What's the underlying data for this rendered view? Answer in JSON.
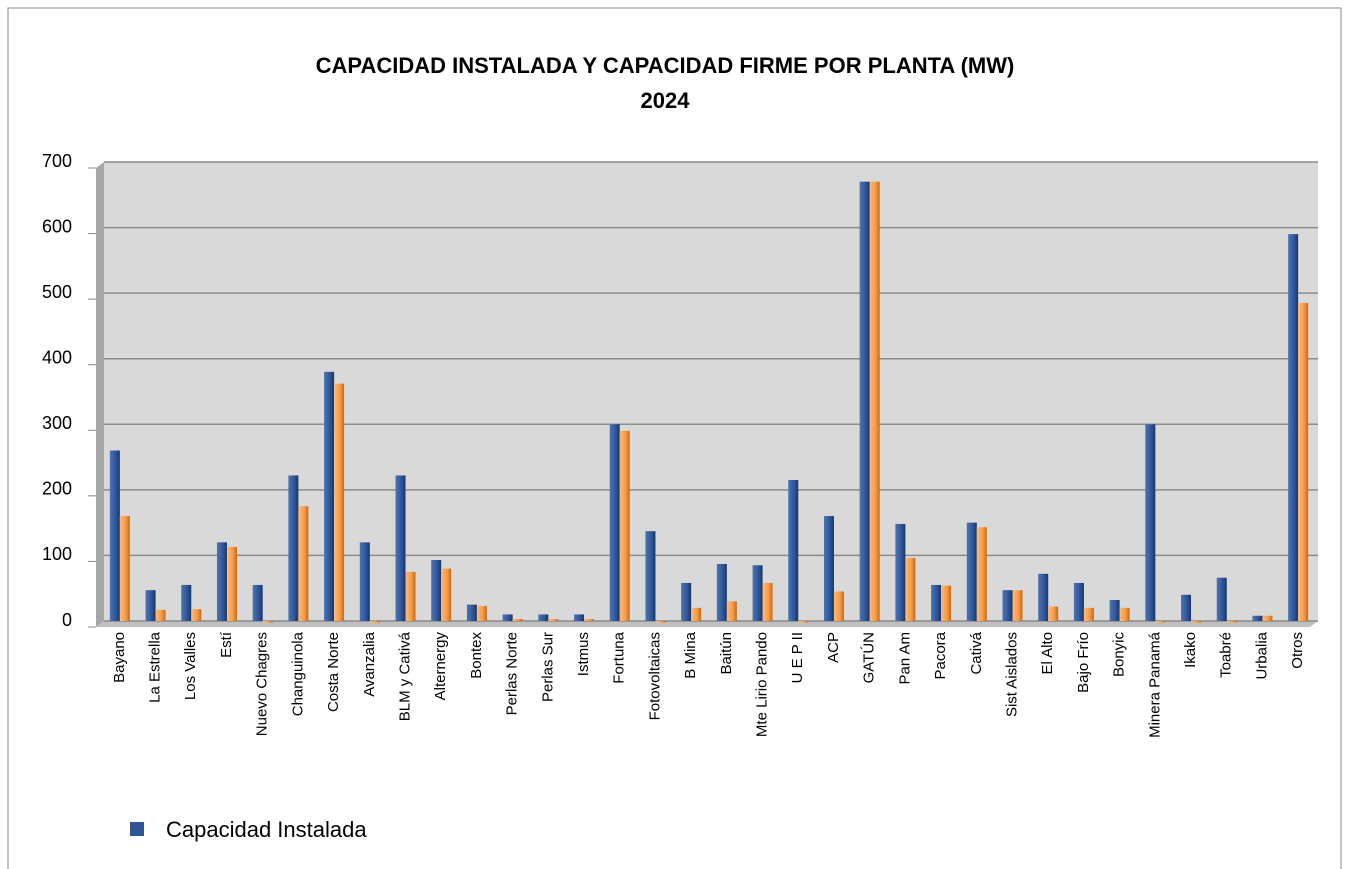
{
  "chart_data": {
    "type": "bar",
    "title": [
      "CAPACIDAD  INSTALADA  Y  CAPACIDAD FIRME POR PLANTA  (MW)",
      "2024"
    ],
    "categories": [
      "Bayano",
      "La Estrella",
      "Los Valles",
      "Estí",
      "Nuevo Chagres",
      "Changuinola",
      "Costa Norte",
      "Avanzalia",
      "BLM  y  Cativá",
      "Alternergy",
      "Bontex",
      "Perlas Norte",
      "Perlas Sur",
      "Istmus",
      "Fortuna",
      "Fotovoltaicas",
      "B Mina",
      "Baitún",
      "Mte Lirio  Pando",
      "U E P  II",
      "ACP",
      "GATÚN",
      "Pan Am",
      "Pacora",
      "Cativá",
      "Sist Aislados",
      "El Alto",
      "Bajo Frío",
      "Bonyic",
      "Minera Panamá",
      "Ikako",
      "Toabré",
      "Urbalia",
      "Otros"
    ],
    "series": [
      {
        "name": "Capacidad  Instalada",
        "color": "#2f5597",
        "values": [
          260,
          47,
          55,
          120,
          55,
          222,
          380,
          120,
          222,
          93,
          25,
          10,
          10,
          10,
          300,
          137,
          58,
          87,
          85,
          215,
          160,
          670,
          148,
          55,
          150,
          47,
          72,
          58,
          32,
          300,
          40,
          66,
          8,
          590
        ]
      },
      {
        "color": "#f59a45",
        "values": [
          160,
          17,
          18,
          113,
          0,
          175,
          362,
          0,
          75,
          80,
          23,
          3,
          3,
          3,
          290,
          0,
          20,
          30,
          58,
          0,
          45,
          670,
          96,
          54,
          143,
          47,
          22,
          20,
          20,
          0,
          0,
          0,
          8,
          485
        ]
      }
    ],
    "ylim": [
      0,
      700
    ],
    "yticks": [
      0,
      100,
      200,
      300,
      400,
      500,
      600,
      700
    ],
    "grid": true
  }
}
